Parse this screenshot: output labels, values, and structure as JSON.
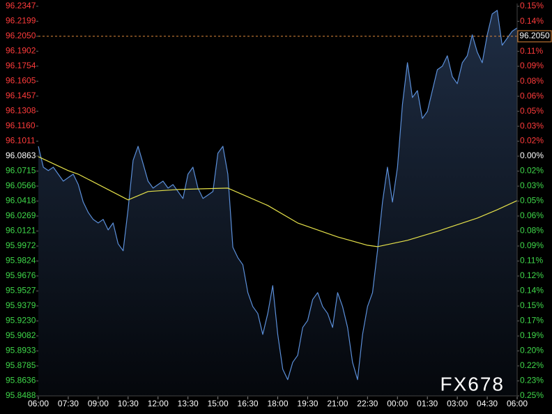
{
  "chart_data": {
    "type": "line",
    "watermark": "FX678",
    "xlim": [
      0,
      1440
    ],
    "xticks": [
      {
        "value": 0,
        "label": "06:00"
      },
      {
        "value": 90,
        "label": "07:30"
      },
      {
        "value": 180,
        "label": "09:00"
      },
      {
        "value": 270,
        "label": "10:30"
      },
      {
        "value": 360,
        "label": "12:00"
      },
      {
        "value": 450,
        "label": "13:30"
      },
      {
        "value": 540,
        "label": "15:00"
      },
      {
        "value": 630,
        "label": "16:30"
      },
      {
        "value": 720,
        "label": "18:00"
      },
      {
        "value": 810,
        "label": "19:30"
      },
      {
        "value": 900,
        "label": "21:00"
      },
      {
        "value": 990,
        "label": "22:30"
      },
      {
        "value": 1080,
        "label": "00:00"
      },
      {
        "value": 1170,
        "label": "01:30"
      },
      {
        "value": 1260,
        "label": "03:00"
      },
      {
        "value": 1350,
        "label": "04:30"
      },
      {
        "value": 1440,
        "label": "06:00"
      }
    ],
    "ylim": [
      95.8488,
      96.2347
    ],
    "yticks": [
      96.2347,
      96.2199,
      {
        "value": 96.205,
        "label": "96.2050"
      },
      96.1902,
      96.1754,
      96.1605,
      96.1457,
      96.1308,
      {
        "value": 96.116,
        "label": "96.1160"
      },
      96.1011,
      96.0863,
      96.0715,
      96.0566,
      96.0418,
      96.0269,
      96.0121,
      95.9972,
      95.9824,
      95.9676,
      95.9527,
      95.9379,
      {
        "value": 95.923,
        "label": "95.9230"
      },
      95.9082,
      95.8933,
      95.8785,
      95.8636,
      95.8488
    ],
    "y2lim": [
      -0.247,
      0.1544
    ],
    "y2ticks": [
      {
        "value": 0.1544,
        "label": "0.15%"
      },
      {
        "value": 0.1389,
        "label": "0.14%"
      },
      {
        "value": 0.1235,
        "label": "0.12%"
      },
      {
        "value": 0.108,
        "label": "0.11%"
      },
      {
        "value": 0.0926,
        "label": "0.09%"
      },
      {
        "value": 0.0771,
        "label": "0.08%"
      },
      {
        "value": 0.0617,
        "label": "0.06%"
      },
      {
        "value": 0.0462,
        "label": "0.05%"
      },
      {
        "value": 0.0308,
        "label": "0.03%"
      },
      {
        "value": 0.0154,
        "label": "0.02%"
      },
      {
        "value": 0,
        "label": "0.00%"
      },
      {
        "value": -0.0154,
        "label": "0.02%"
      },
      {
        "value": -0.0309,
        "label": "0.03%"
      },
      {
        "value": -0.0463,
        "label": "0.05%"
      },
      {
        "value": -0.0617,
        "label": "0.06%"
      },
      {
        "value": -0.0772,
        "label": "0.08%"
      },
      {
        "value": -0.0926,
        "label": "0.09%"
      },
      {
        "value": -0.1081,
        "label": "0.11%"
      },
      {
        "value": -0.1235,
        "label": "0.12%"
      },
      {
        "value": -0.1389,
        "label": "0.14%"
      },
      {
        "value": -0.1544,
        "label": "0.15%"
      },
      {
        "value": -0.1698,
        "label": "0.17%"
      },
      {
        "value": -0.1853,
        "label": "0.19%"
      },
      {
        "value": -0.2007,
        "label": "0.20%"
      },
      {
        "value": -0.2161,
        "label": "0.22%"
      },
      {
        "value": -0.2316,
        "label": "0.23%"
      },
      {
        "value": -0.247,
        "label": "0.25%"
      }
    ],
    "reference_line": {
      "value": 96.205,
      "label": "96.2050",
      "color": "#e08a3c"
    },
    "grid": false,
    "series": [
      {
        "color": "#5b8fd9",
        "area": true,
        "x": [
          0,
          15,
          30,
          45,
          60,
          75,
          90,
          105,
          120,
          135,
          150,
          165,
          180,
          195,
          210,
          225,
          240,
          255,
          270,
          285,
          300,
          315,
          330,
          345,
          360,
          375,
          390,
          405,
          420,
          435,
          450,
          465,
          480,
          495,
          510,
          525,
          540,
          555,
          570,
          585,
          600,
          615,
          630,
          645,
          660,
          675,
          690,
          705,
          720,
          735,
          750,
          765,
          780,
          795,
          810,
          825,
          840,
          855,
          870,
          885,
          900,
          915,
          930,
          945,
          960,
          975,
          990,
          1005,
          1020,
          1035,
          1050,
          1065,
          1080,
          1095,
          1110,
          1125,
          1140,
          1155,
          1170,
          1185,
          1200,
          1215,
          1230,
          1245,
          1260,
          1275,
          1290,
          1305,
          1320,
          1335,
          1350,
          1365,
          1380,
          1395,
          1410,
          1425,
          1440
        ],
        "values": [
          96.096,
          96.0753,
          96.0719,
          96.0753,
          96.0684,
          96.0615,
          96.065,
          96.0684,
          96.0581,
          96.0408,
          96.0305,
          96.0236,
          96.0201,
          96.0236,
          96.0132,
          96.0201,
          95.9994,
          95.9925,
          96.0339,
          96.0822,
          96.096,
          96.0788,
          96.0615,
          96.0546,
          96.0581,
          96.0615,
          96.0546,
          96.0581,
          96.0512,
          96.0443,
          96.0684,
          96.0753,
          96.0546,
          96.0443,
          96.0477,
          96.0512,
          96.0891,
          96.096,
          96.0684,
          95.996,
          95.9856,
          95.9787,
          95.9511,
          95.9373,
          95.9304,
          95.9097,
          95.9304,
          95.958,
          95.9097,
          95.8752,
          95.8649,
          95.8821,
          95.889,
          95.9166,
          95.9235,
          95.9442,
          95.9511,
          95.9373,
          95.9304,
          95.9166,
          95.9511,
          95.9373,
          95.9166,
          95.8821,
          95.8649,
          95.9097,
          95.9373,
          95.9511,
          95.9925,
          96.0408,
          96.0753,
          96.0408,
          96.0753,
          96.1374,
          96.1788,
          96.1443,
          96.1512,
          96.1236,
          96.1305,
          96.1512,
          96.1719,
          96.1754,
          96.1857,
          96.165,
          96.1581,
          96.1788,
          96.1857,
          96.2064,
          96.1892,
          96.1788,
          96.2064,
          96.2271,
          96.2306,
          96.1961,
          96.203,
          96.2099,
          96.2133
        ]
      },
      {
        "color": "#e6e24a",
        "area": false,
        "x": [
          0,
          90,
          120,
          270,
          330,
          420,
          570,
          690,
          780,
          900,
          990,
          1020,
          1110,
          1200,
          1320,
          1380,
          1440
        ],
        "values": [
          96.0857,
          96.0719,
          96.0684,
          96.0429,
          96.0512,
          96.0532,
          96.0546,
          96.0374,
          96.0201,
          96.0063,
          95.998,
          95.9966,
          96.0029,
          96.0118,
          96.0249,
          96.0332,
          96.0422
        ]
      }
    ]
  }
}
